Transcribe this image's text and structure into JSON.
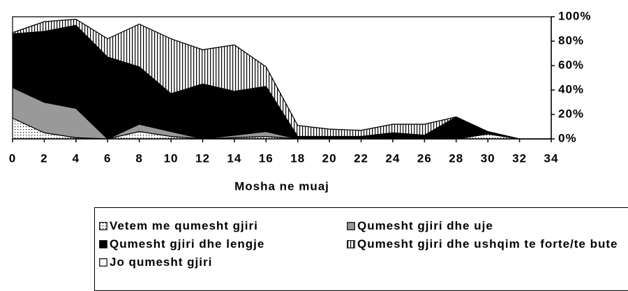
{
  "chart_data": {
    "type": "stacked-area",
    "x_label": "Mosha ne muaj",
    "x": [
      0,
      2,
      4,
      6,
      8,
      10,
      12,
      14,
      16,
      18,
      20,
      22,
      24,
      26,
      28,
      30,
      32,
      34
    ],
    "xlim": [
      0,
      34
    ],
    "xticks": [
      0,
      2,
      4,
      6,
      8,
      10,
      12,
      14,
      16,
      18,
      20,
      22,
      24,
      26,
      28,
      30,
      32,
      34
    ],
    "ylim": [
      0,
      100
    ],
    "yticks": [
      {
        "value": 0,
        "label": "0%"
      },
      {
        "value": 20,
        "label": "20%"
      },
      {
        "value": 40,
        "label": "40%"
      },
      {
        "value": 60,
        "label": "60%"
      },
      {
        "value": 80,
        "label": "80%"
      },
      {
        "value": 100,
        "label": "100%"
      }
    ],
    "y_axis_side": "right",
    "series": [
      {
        "name": "Vetem me qumesht gjiri",
        "color": "#ffffff",
        "pattern": "dots",
        "values": [
          17,
          5,
          1,
          0,
          6,
          2,
          0,
          1,
          2,
          0,
          0,
          0,
          0,
          0,
          0,
          4,
          0,
          0
        ]
      },
      {
        "name": "Qumesht gjiri dhe uje",
        "color": "#999999",
        "pattern": "solid",
        "values": [
          25,
          25,
          24,
          0,
          6,
          4,
          0,
          2,
          4,
          0,
          0,
          0,
          0,
          0,
          0,
          0,
          0,
          0
        ]
      },
      {
        "name": "Qumesht gjiri dhe lengje",
        "color": "#000000",
        "pattern": "solid",
        "values": [
          44,
          58,
          68,
          67,
          47,
          31,
          45,
          36,
          37,
          2,
          2,
          2,
          5,
          3,
          18,
          2,
          0,
          0
        ]
      },
      {
        "name": "Qumesht gjiri dhe ushqim te forte/te bute",
        "color": "#ffffff",
        "pattern": "stripes",
        "values": [
          1,
          8,
          5,
          15,
          35,
          45,
          28,
          38,
          16,
          9,
          6,
          5,
          7,
          9,
          0,
          0,
          0,
          0
        ]
      },
      {
        "name": "Jo qumesht gjiri",
        "color": "#ffffff",
        "pattern": "solid",
        "values": [
          13,
          4,
          2,
          18,
          6,
          18,
          27,
          23,
          41,
          89,
          92,
          93,
          88,
          88,
          82,
          94,
          100,
          100
        ]
      }
    ],
    "legend_order": [
      0,
      1,
      2,
      3,
      4
    ]
  }
}
